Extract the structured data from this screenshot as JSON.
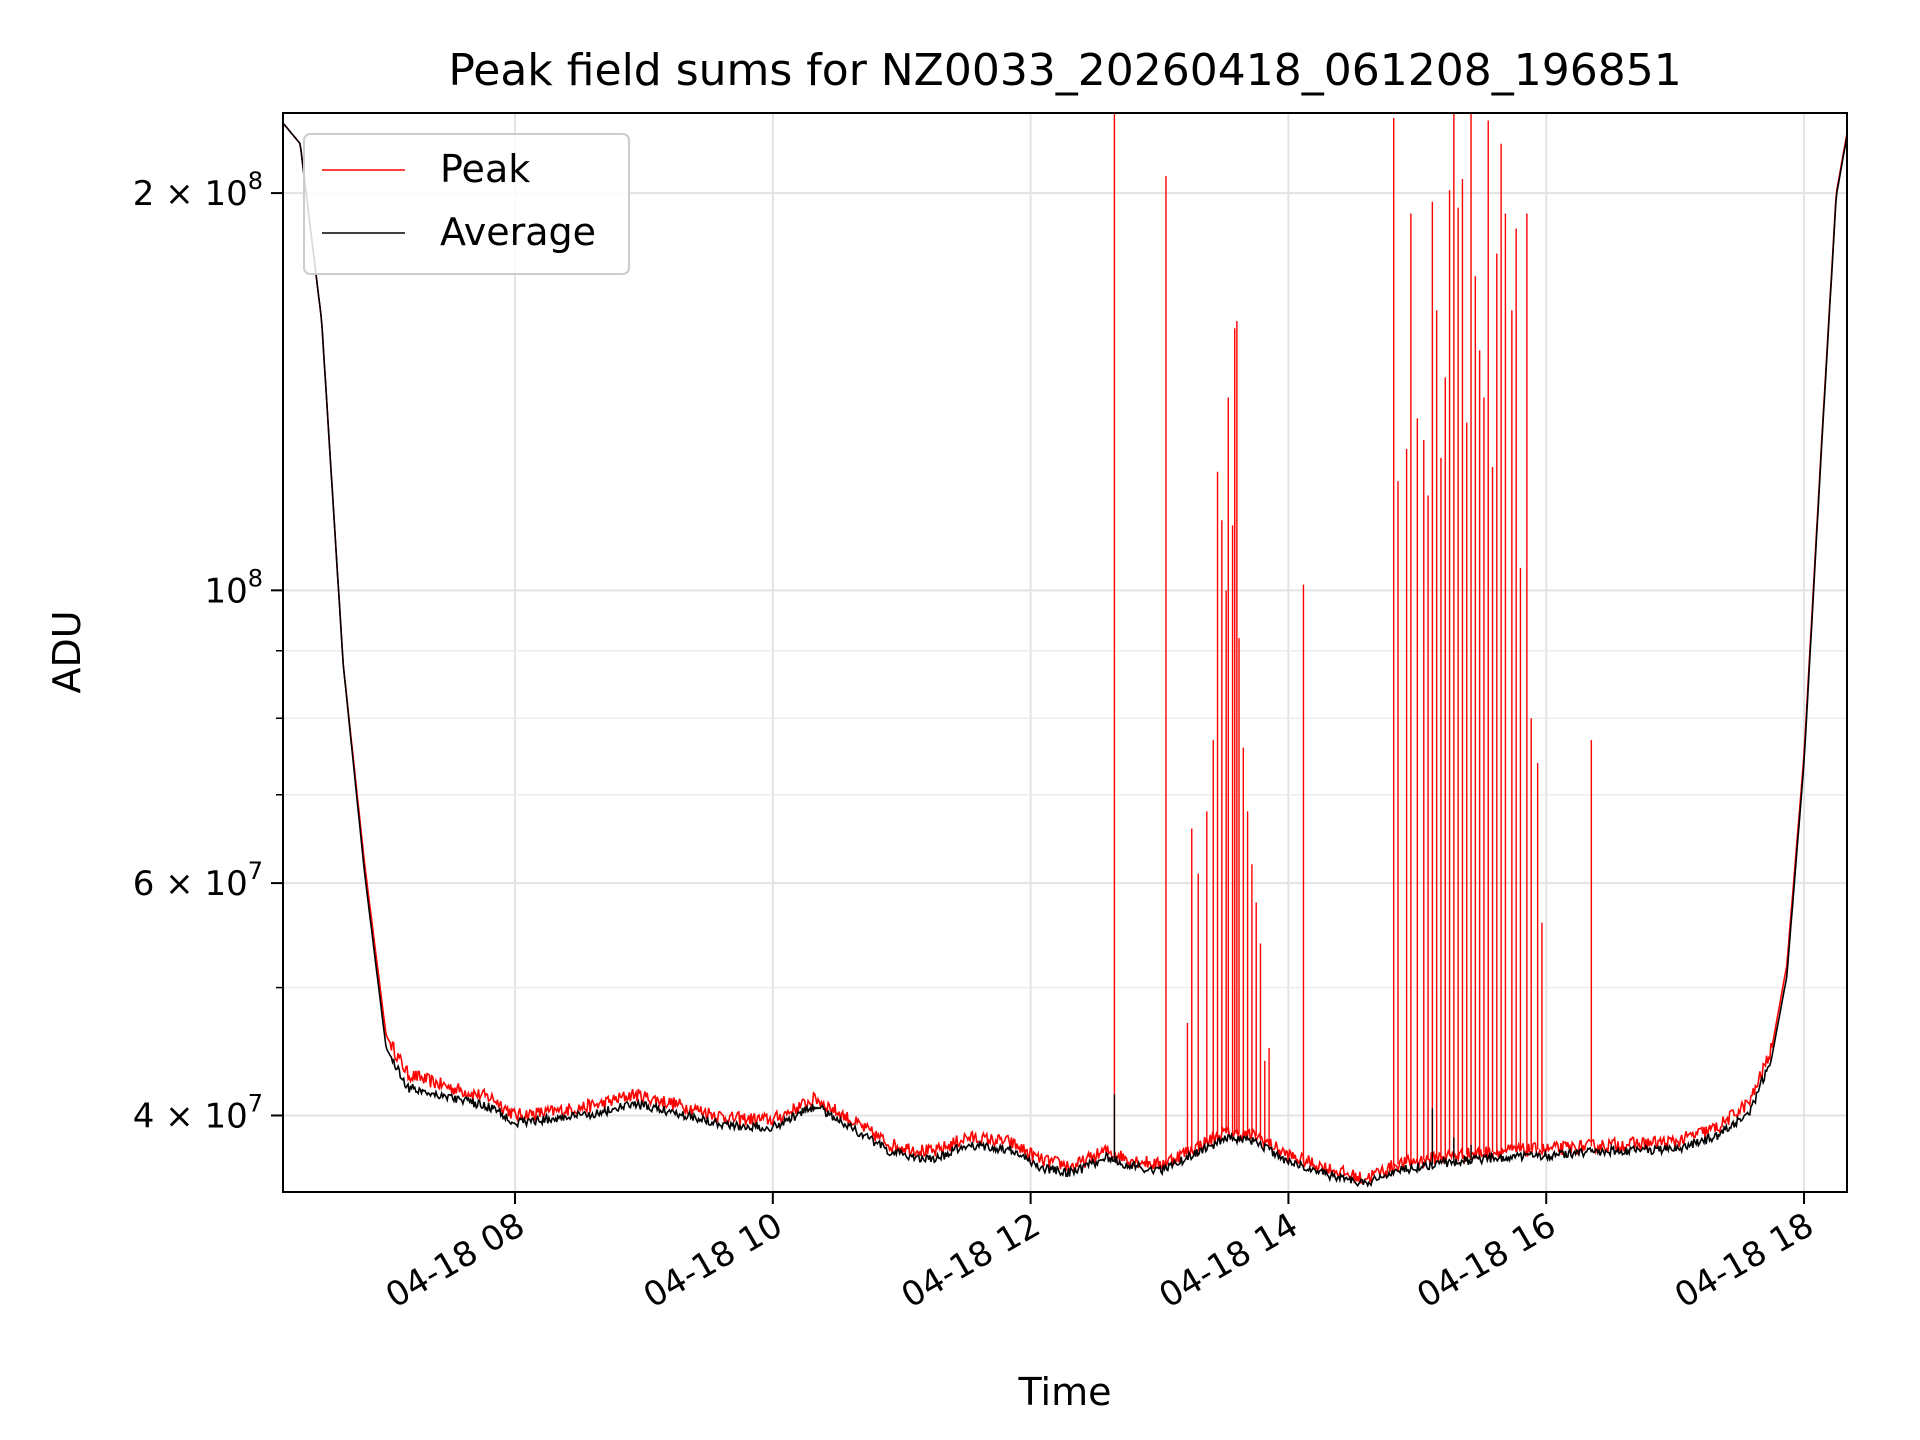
{
  "chart_data": {
    "type": "line",
    "title": "Peak field sums for NZ0033_20260418_061208_196851",
    "xlabel": "Time",
    "ylabel": "ADU",
    "y_scale": "log",
    "ylim": [
      35000000,
      230000000
    ],
    "xlim": [
      "04-18 06:12",
      "04-18 18:20"
    ],
    "grid": true,
    "legend_position": "upper-left",
    "x_ticks": [
      {
        "time": "04-18 08:00",
        "label": "04-18 08"
      },
      {
        "time": "04-18 10:00",
        "label": "04-18 10"
      },
      {
        "time": "04-18 12:00",
        "label": "04-18 12"
      },
      {
        "time": "04-18 14:00",
        "label": "04-18 14"
      },
      {
        "time": "04-18 16:00",
        "label": "04-18 16"
      },
      {
        "time": "04-18 18:00",
        "label": "04-18 18"
      }
    ],
    "y_major_ticks": [
      {
        "value": 40000000,
        "mantissa": "4",
        "exponent": "7"
      },
      {
        "value": 60000000,
        "mantissa": "6",
        "exponent": "7"
      },
      {
        "value": 100000000,
        "mantissa": "",
        "exponent": "8"
      },
      {
        "value": 200000000,
        "mantissa": "2",
        "exponent": "8"
      }
    ],
    "y_minor_ticks": [
      50000000,
      70000000,
      80000000,
      90000000
    ],
    "y_tick_multiply": "×",
    "y_tick_base": "10",
    "series": [
      {
        "name": "Peak",
        "color": "#ff0000",
        "baseline": [
          [
            "04-18 06:12",
            226000000
          ],
          [
            "04-18 06:20",
            218000000
          ],
          [
            "04-18 06:30",
            160000000
          ],
          [
            "04-18 06:40",
            88000000
          ],
          [
            "04-18 06:50",
            62000000
          ],
          [
            "04-18 07:00",
            46000000
          ],
          [
            "04-18 07:10",
            43000000
          ],
          [
            "04-18 07:30",
            42000000
          ],
          [
            "04-18 07:50",
            41200000
          ],
          [
            "04-18 08:00",
            40000000
          ],
          [
            "04-18 08:20",
            40300000
          ],
          [
            "04-18 08:40",
            40800000
          ],
          [
            "04-18 08:55",
            41500000
          ],
          [
            "04-18 09:15",
            40800000
          ],
          [
            "04-18 09:40",
            39800000
          ],
          [
            "04-18 10:00",
            39700000
          ],
          [
            "04-18 10:20",
            41200000
          ],
          [
            "04-18 10:35",
            39800000
          ],
          [
            "04-18 10:55",
            38000000
          ],
          [
            "04-18 11:15",
            37500000
          ],
          [
            "04-18 11:30",
            38500000
          ],
          [
            "04-18 11:50",
            38200000
          ],
          [
            "04-18 12:05",
            37000000
          ],
          [
            "04-18 12:20",
            36600000
          ],
          [
            "04-18 12:35",
            37600000
          ],
          [
            "04-18 12:45",
            37100000
          ],
          [
            "04-18 13:00",
            36700000
          ],
          [
            "04-18 13:15",
            37700000
          ],
          [
            "04-18 13:30",
            38800000
          ],
          [
            "04-18 13:45",
            38600000
          ],
          [
            "04-18 14:00",
            37300000
          ],
          [
            "04-18 14:20",
            36400000
          ],
          [
            "04-18 14:35",
            35800000
          ],
          [
            "04-18 14:50",
            36700000
          ],
          [
            "04-18 15:10",
            37200000
          ],
          [
            "04-18 15:40",
            37600000
          ],
          [
            "04-18 16:00",
            37700000
          ],
          [
            "04-18 16:30",
            38000000
          ],
          [
            "04-18 17:00",
            38200000
          ],
          [
            "04-18 17:20",
            39200000
          ],
          [
            "04-18 17:35",
            41000000
          ],
          [
            "04-18 17:45",
            45000000
          ],
          [
            "04-18 17:52",
            52000000
          ],
          [
            "04-18 18:00",
            75000000
          ],
          [
            "04-18 18:08",
            128000000
          ],
          [
            "04-18 18:15",
            200000000
          ],
          [
            "04-18 18:20",
            222000000
          ]
        ],
        "spikes": [
          [
            "04-18 12:39",
            230000000
          ],
          [
            "04-18 13:03",
            206000000
          ],
          [
            "04-18 13:13",
            47000000
          ],
          [
            "04-18 13:15",
            66000000
          ],
          [
            "04-18 13:18",
            61000000
          ],
          [
            "04-18 13:22",
            68000000
          ],
          [
            "04-18 13:25",
            77000000
          ],
          [
            "04-18 13:27",
            123000000
          ],
          [
            "04-18 13:29",
            113000000
          ],
          [
            "04-18 13:31",
            100000000
          ],
          [
            "04-18 13:32",
            140000000
          ],
          [
            "04-18 13:34",
            112000000
          ],
          [
            "04-18 13:35",
            158000000
          ],
          [
            "04-18 13:36",
            160000000
          ],
          [
            "04-18 13:37",
            92000000
          ],
          [
            "04-18 13:39",
            76000000
          ],
          [
            "04-18 13:41",
            68000000
          ],
          [
            "04-18 13:43",
            62000000
          ],
          [
            "04-18 13:45",
            58000000
          ],
          [
            "04-18 13:47",
            54000000
          ],
          [
            "04-18 13:49",
            44000000
          ],
          [
            "04-18 13:51",
            45000000
          ],
          [
            "04-18 14:07",
            101000000
          ],
          [
            "04-18 14:49",
            228000000
          ],
          [
            "04-18 14:51",
            121000000
          ],
          [
            "04-18 14:55",
            128000000
          ],
          [
            "04-18 14:57",
            193000000
          ],
          [
            "04-18 15:00",
            135000000
          ],
          [
            "04-18 15:03",
            130000000
          ],
          [
            "04-18 15:05",
            118000000
          ],
          [
            "04-18 15:07",
            197000000
          ],
          [
            "04-18 15:09",
            163000000
          ],
          [
            "04-18 15:11",
            126000000
          ],
          [
            "04-18 15:13",
            145000000
          ],
          [
            "04-18 15:15",
            201000000
          ],
          [
            "04-18 15:17",
            230000000
          ],
          [
            "04-18 15:19",
            195000000
          ],
          [
            "04-18 15:21",
            205000000
          ],
          [
            "04-18 15:23",
            134000000
          ],
          [
            "04-18 15:25",
            230000000
          ],
          [
            "04-18 15:27",
            173000000
          ],
          [
            "04-18 15:29",
            152000000
          ],
          [
            "04-18 15:31",
            140000000
          ],
          [
            "04-18 15:33",
            227000000
          ],
          [
            "04-18 15:35",
            124000000
          ],
          [
            "04-18 15:37",
            180000000
          ],
          [
            "04-18 15:39",
            218000000
          ],
          [
            "04-18 15:41",
            193000000
          ],
          [
            "04-18 15:44",
            163000000
          ],
          [
            "04-18 15:46",
            188000000
          ],
          [
            "04-18 15:48",
            104000000
          ],
          [
            "04-18 15:51",
            193000000
          ],
          [
            "04-18 15:53",
            80000000
          ],
          [
            "04-18 15:56",
            74000000
          ],
          [
            "04-18 15:58",
            56000000
          ],
          [
            "04-18 16:21",
            77000000
          ]
        ]
      },
      {
        "name": "Average",
        "color": "#000000",
        "baseline": [
          [
            "04-18 06:12",
            226000000
          ],
          [
            "04-18 06:20",
            218000000
          ],
          [
            "04-18 06:30",
            160000000
          ],
          [
            "04-18 06:40",
            88000000
          ],
          [
            "04-18 06:50",
            61000000
          ],
          [
            "04-18 07:00",
            45000000
          ],
          [
            "04-18 07:10",
            42000000
          ],
          [
            "04-18 07:30",
            41300000
          ],
          [
            "04-18 07:50",
            40500000
          ],
          [
            "04-18 08:00",
            39500000
          ],
          [
            "04-18 08:20",
            39800000
          ],
          [
            "04-18 08:40",
            40200000
          ],
          [
            "04-18 08:55",
            40800000
          ],
          [
            "04-18 09:15",
            40200000
          ],
          [
            "04-18 09:40",
            39300000
          ],
          [
            "04-18 10:00",
            39200000
          ],
          [
            "04-18 10:20",
            40700000
          ],
          [
            "04-18 10:35",
            39300000
          ],
          [
            "04-18 10:55",
            37500000
          ],
          [
            "04-18 11:15",
            37000000
          ],
          [
            "04-18 11:30",
            38000000
          ],
          [
            "04-18 11:50",
            37700000
          ],
          [
            "04-18 12:05",
            36500000
          ],
          [
            "04-18 12:20",
            36200000
          ],
          [
            "04-18 12:35",
            37200000
          ],
          [
            "04-18 12:45",
            36700000
          ],
          [
            "04-18 13:00",
            36300000
          ],
          [
            "04-18 13:15",
            37300000
          ],
          [
            "04-18 13:30",
            38400000
          ],
          [
            "04-18 13:45",
            38200000
          ],
          [
            "04-18 14:00",
            36900000
          ],
          [
            "04-18 14:20",
            36000000
          ],
          [
            "04-18 14:35",
            35500000
          ],
          [
            "04-18 14:50",
            36300000
          ],
          [
            "04-18 15:10",
            36800000
          ],
          [
            "04-18 15:40",
            37200000
          ],
          [
            "04-18 16:00",
            37300000
          ],
          [
            "04-18 16:30",
            37600000
          ],
          [
            "04-18 17:00",
            37700000
          ],
          [
            "04-18 17:20",
            38600000
          ],
          [
            "04-18 17:35",
            40300000
          ],
          [
            "04-18 17:45",
            44300000
          ],
          [
            "04-18 17:52",
            51000000
          ],
          [
            "04-18 18:00",
            74000000
          ],
          [
            "04-18 18:08",
            127000000
          ],
          [
            "04-18 18:15",
            199000000
          ],
          [
            "04-18 18:20",
            221000000
          ]
        ],
        "spikes": [
          [
            "04-18 12:39",
            41500000
          ],
          [
            "04-18 15:07",
            40500000
          ],
          [
            "04-18 15:17",
            38500000
          ],
          [
            "04-18 15:25",
            38000000
          ]
        ]
      }
    ]
  }
}
